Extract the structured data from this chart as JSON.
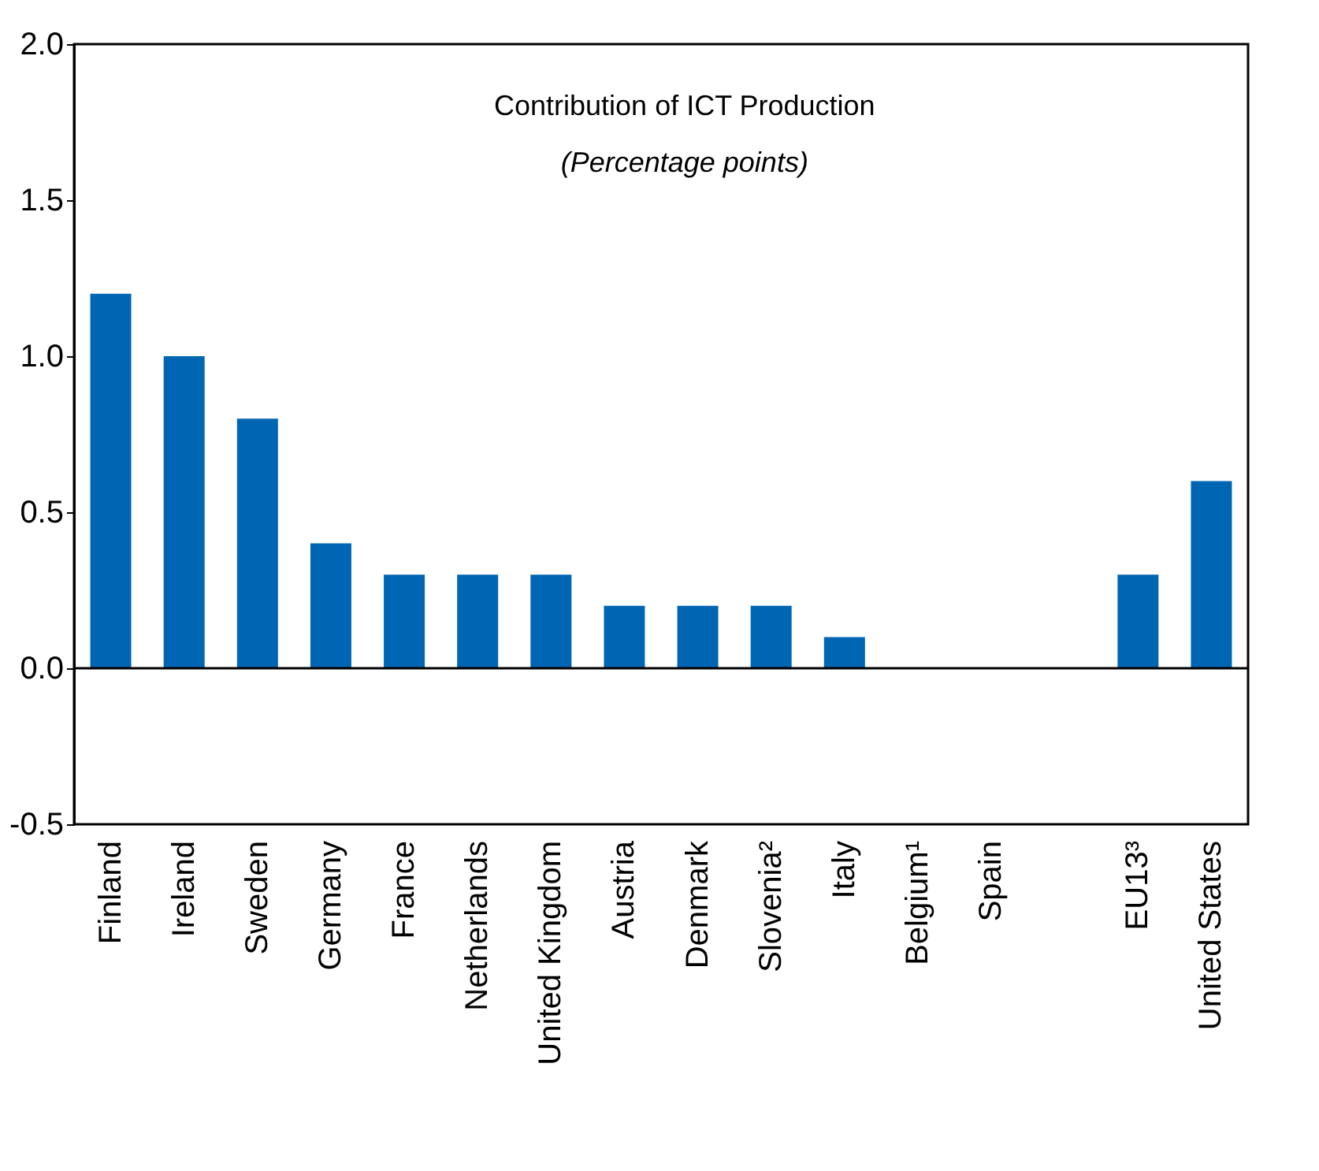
{
  "chart_data": {
    "type": "bar",
    "title": "Contribution of ICT Production",
    "subtitle": "(Percentage points)",
    "categories": [
      "Finland",
      "Ireland",
      "Sweden",
      "Germany",
      "France",
      "Netherlands",
      "United Kingdom",
      "Austria",
      "Denmark",
      "Slovenia²",
      "Italy",
      "Belgium¹",
      "Spain",
      null,
      "EU13³",
      "United States"
    ],
    "values": [
      1.2,
      1.0,
      0.8,
      0.4,
      0.3,
      0.3,
      0.3,
      0.2,
      0.2,
      0.2,
      0.1,
      0,
      0,
      null,
      0.3,
      0.6
    ],
    "color": "#0066b3",
    "ylim": [
      -0.5,
      2.0
    ],
    "yticks": [
      {
        "value": -0.5,
        "label": "-0.5"
      },
      {
        "value": 0,
        "label": "0.0"
      },
      {
        "value": 0.5,
        "label": "0.5"
      },
      {
        "value": 1,
        "label": "1.0"
      },
      {
        "value": 1.5,
        "label": "1.5"
      },
      {
        "value": 2,
        "label": "2.0"
      }
    ],
    "tick_labels": true
  }
}
